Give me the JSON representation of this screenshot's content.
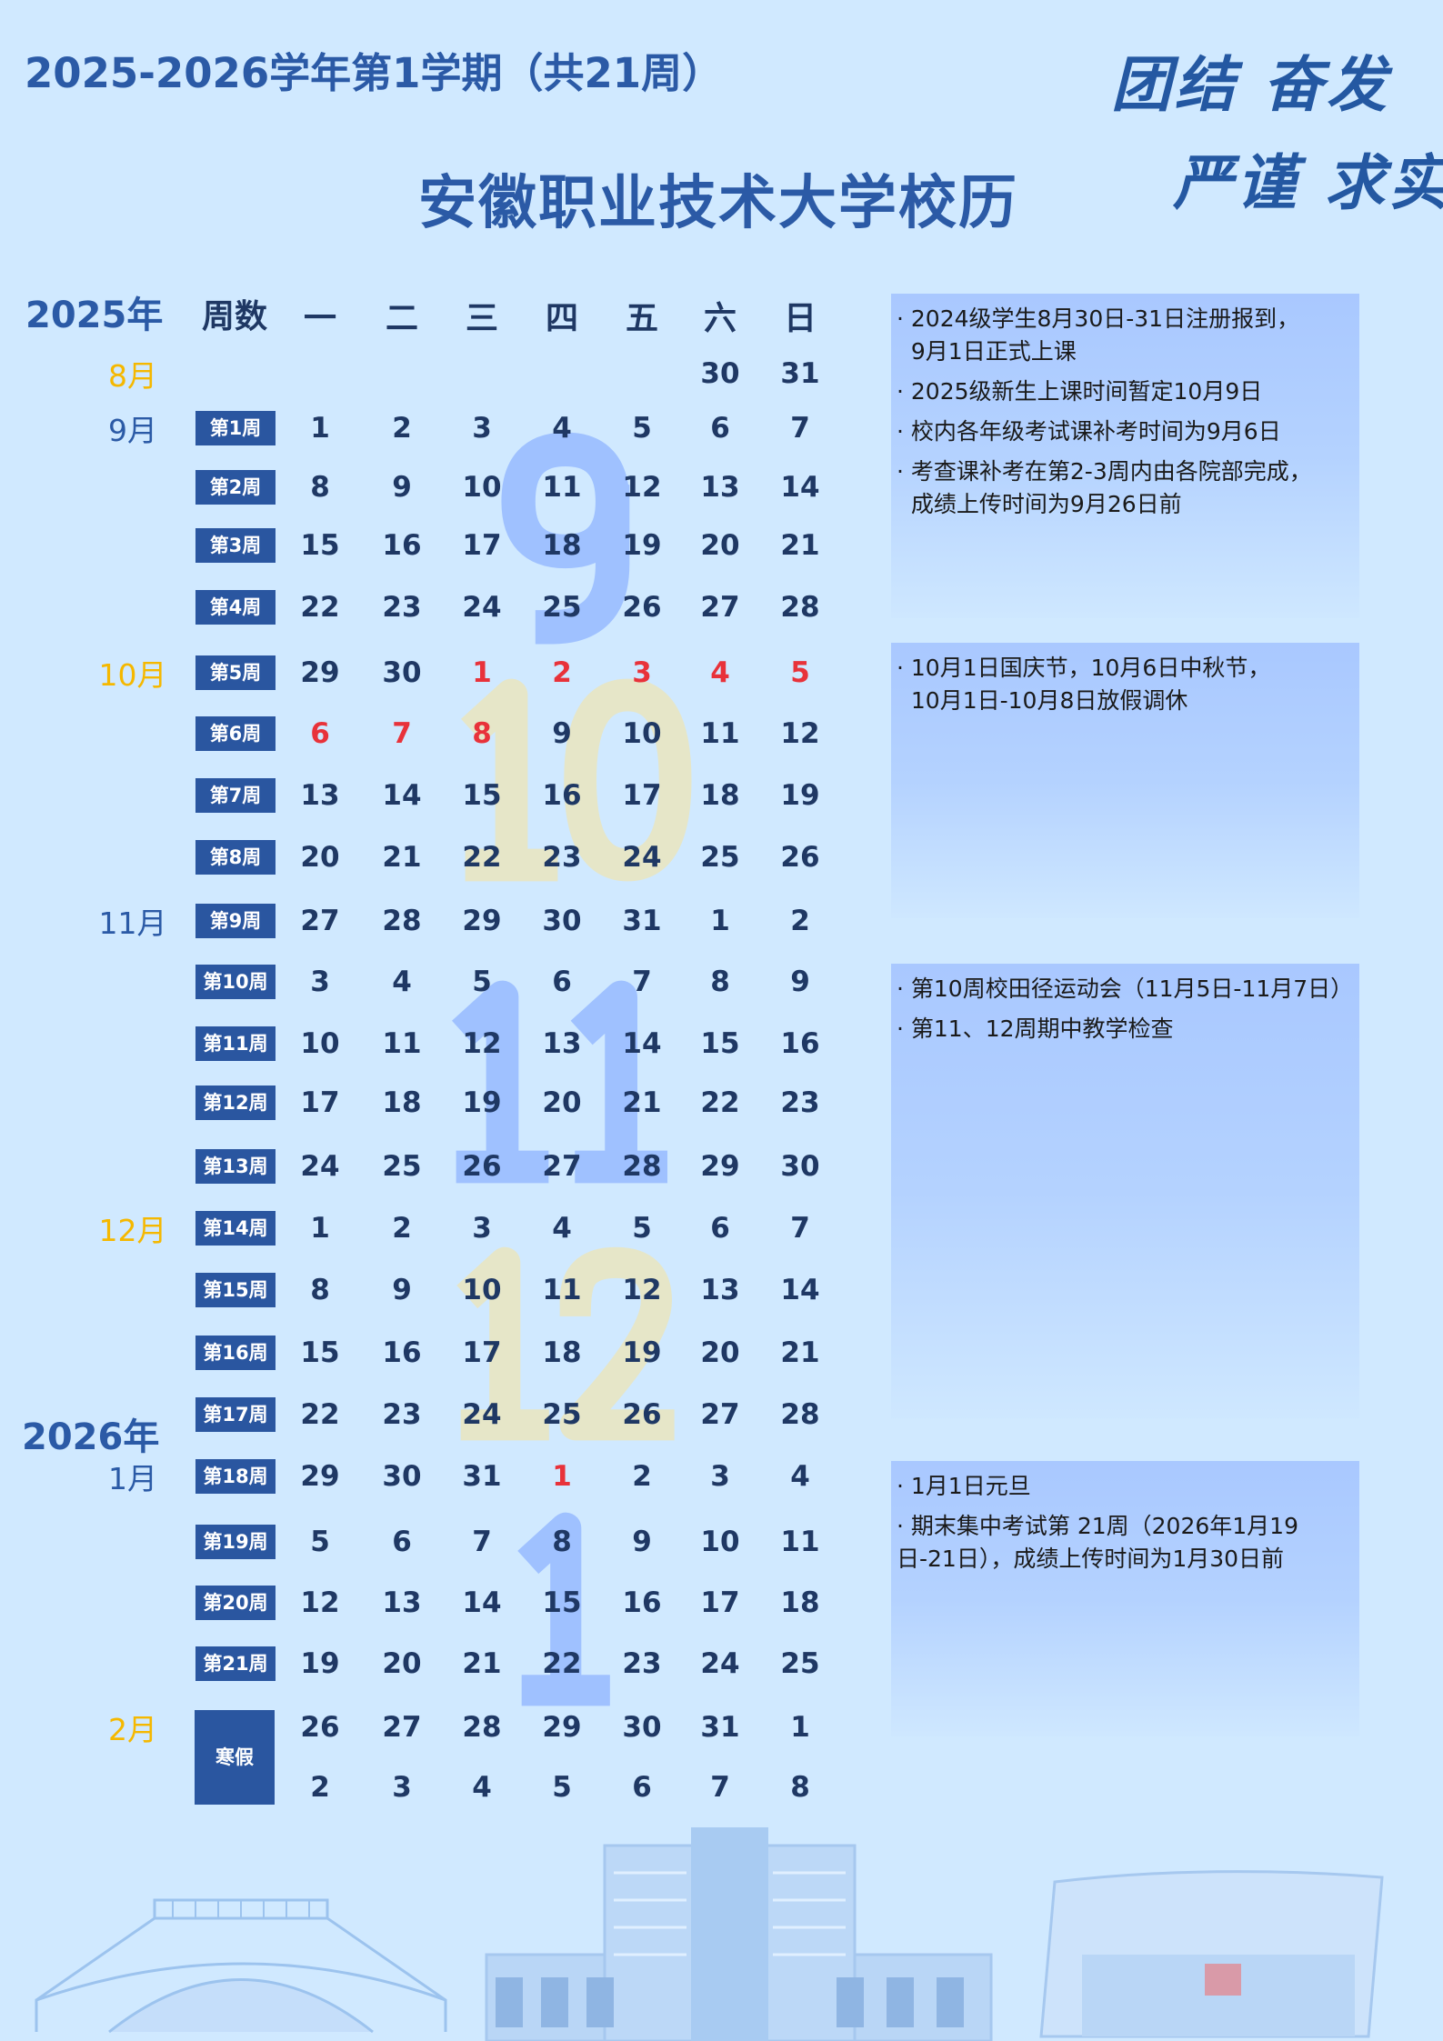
{
  "header": {
    "semester_title": "2025-2026学年第1学期（共21周）",
    "main_title": "安徽职业技术大学校历",
    "motto": [
      "团结 奋发",
      "严谨 求实"
    ]
  },
  "calendar": {
    "year_labels": [
      "2025年",
      "2026年"
    ],
    "week_column_header": "周数",
    "weekday_headers": [
      "一",
      "二",
      "三",
      "四",
      "五",
      "六",
      "日"
    ],
    "colors": {
      "month_yellow": "#f5b800",
      "month_blue": "#2b5aa6",
      "holiday_red": "#e8323a",
      "badge": "#2a56a0"
    },
    "months": [
      {
        "label": "8月",
        "color": "yellow"
      },
      {
        "label": "9月",
        "color": "blue"
      },
      {
        "label": "10月",
        "color": "yellow"
      },
      {
        "label": "11月",
        "color": "blue"
      },
      {
        "label": "12月",
        "color": "yellow"
      },
      {
        "label": "1月",
        "color": "blue"
      },
      {
        "label": "2月",
        "color": "yellow"
      }
    ],
    "winter_break_label": "寒假",
    "rows": [
      {
        "week": "",
        "days": [
          null,
          null,
          null,
          null,
          null,
          30,
          31
        ],
        "red": []
      },
      {
        "week": "第1周",
        "days": [
          1,
          2,
          3,
          4,
          5,
          6,
          7
        ],
        "red": []
      },
      {
        "week": "第2周",
        "days": [
          8,
          9,
          10,
          11,
          12,
          13,
          14
        ],
        "red": []
      },
      {
        "week": "第3周",
        "days": [
          15,
          16,
          17,
          18,
          19,
          20,
          21
        ],
        "red": []
      },
      {
        "week": "第4周",
        "days": [
          22,
          23,
          24,
          25,
          26,
          27,
          28
        ],
        "red": []
      },
      {
        "week": "第5周",
        "days": [
          29,
          30,
          1,
          2,
          3,
          4,
          5
        ],
        "red": [
          2,
          3,
          4,
          5,
          6
        ]
      },
      {
        "week": "第6周",
        "days": [
          6,
          7,
          8,
          9,
          10,
          11,
          12
        ],
        "red": [
          0,
          1,
          2
        ]
      },
      {
        "week": "第7周",
        "days": [
          13,
          14,
          15,
          16,
          17,
          18,
          19
        ],
        "red": []
      },
      {
        "week": "第8周",
        "days": [
          20,
          21,
          22,
          23,
          24,
          25,
          26
        ],
        "red": []
      },
      {
        "week": "第9周",
        "days": [
          27,
          28,
          29,
          30,
          31,
          1,
          2
        ],
        "red": []
      },
      {
        "week": "第10周",
        "days": [
          3,
          4,
          5,
          6,
          7,
          8,
          9
        ],
        "red": []
      },
      {
        "week": "第11周",
        "days": [
          10,
          11,
          12,
          13,
          14,
          15,
          16
        ],
        "red": []
      },
      {
        "week": "第12周",
        "days": [
          17,
          18,
          19,
          20,
          21,
          22,
          23
        ],
        "red": []
      },
      {
        "week": "第13周",
        "days": [
          24,
          25,
          26,
          27,
          28,
          29,
          30
        ],
        "red": []
      },
      {
        "week": "第14周",
        "days": [
          1,
          2,
          3,
          4,
          5,
          6,
          7
        ],
        "red": []
      },
      {
        "week": "第15周",
        "days": [
          8,
          9,
          10,
          11,
          12,
          13,
          14
        ],
        "red": []
      },
      {
        "week": "第16周",
        "days": [
          15,
          16,
          17,
          18,
          19,
          20,
          21
        ],
        "red": []
      },
      {
        "week": "第17周",
        "days": [
          22,
          23,
          24,
          25,
          26,
          27,
          28
        ],
        "red": []
      },
      {
        "week": "第18周",
        "days": [
          29,
          30,
          31,
          1,
          2,
          3,
          4
        ],
        "red": [
          3
        ]
      },
      {
        "week": "第19周",
        "days": [
          5,
          6,
          7,
          8,
          9,
          10,
          11
        ],
        "red": []
      },
      {
        "week": "第20周",
        "days": [
          12,
          13,
          14,
          15,
          16,
          17,
          18
        ],
        "red": []
      },
      {
        "week": "第21周",
        "days": [
          19,
          20,
          21,
          22,
          23,
          24,
          25
        ],
        "red": []
      },
      {
        "week": "",
        "days": [
          26,
          27,
          28,
          29,
          30,
          31,
          1
        ],
        "red": []
      },
      {
        "week": "",
        "days": [
          2,
          3,
          4,
          5,
          6,
          7,
          8
        ],
        "red": []
      }
    ],
    "watermarks": [
      {
        "text": "9",
        "color": "#9fc1ff"
      },
      {
        "text": "10",
        "color": "#e6e6c8"
      },
      {
        "text": "11",
        "color": "#9fc1ff"
      },
      {
        "text": "12",
        "color": "#e6e6c8"
      },
      {
        "text": "1",
        "color": "#9fc1ff"
      }
    ]
  },
  "notes": [
    [
      "· 2024级学生8月30日-31日注册报到，\n  9月1日正式上课",
      "· 2025级新生上课时间暂定10月9日",
      "· 校内各年级考试课补考时间为9月6日",
      "· 考查课补考在第2-3周内由各院部完成，\n  成绩上传时间为9月26日前"
    ],
    [
      "· 10月1日国庆节，10月6日中秋节，\n  10月1日-10月8日放假调休"
    ],
    [
      "· 第10周校田径运动会（11月5日-11月7日）",
      "· 第11、12周期中教学检查"
    ],
    [
      "· 1月1日元旦",
      "· 期末集中考试第 21周（2026年1月19日-21日），成绩上传时间为1月30日前"
    ]
  ]
}
